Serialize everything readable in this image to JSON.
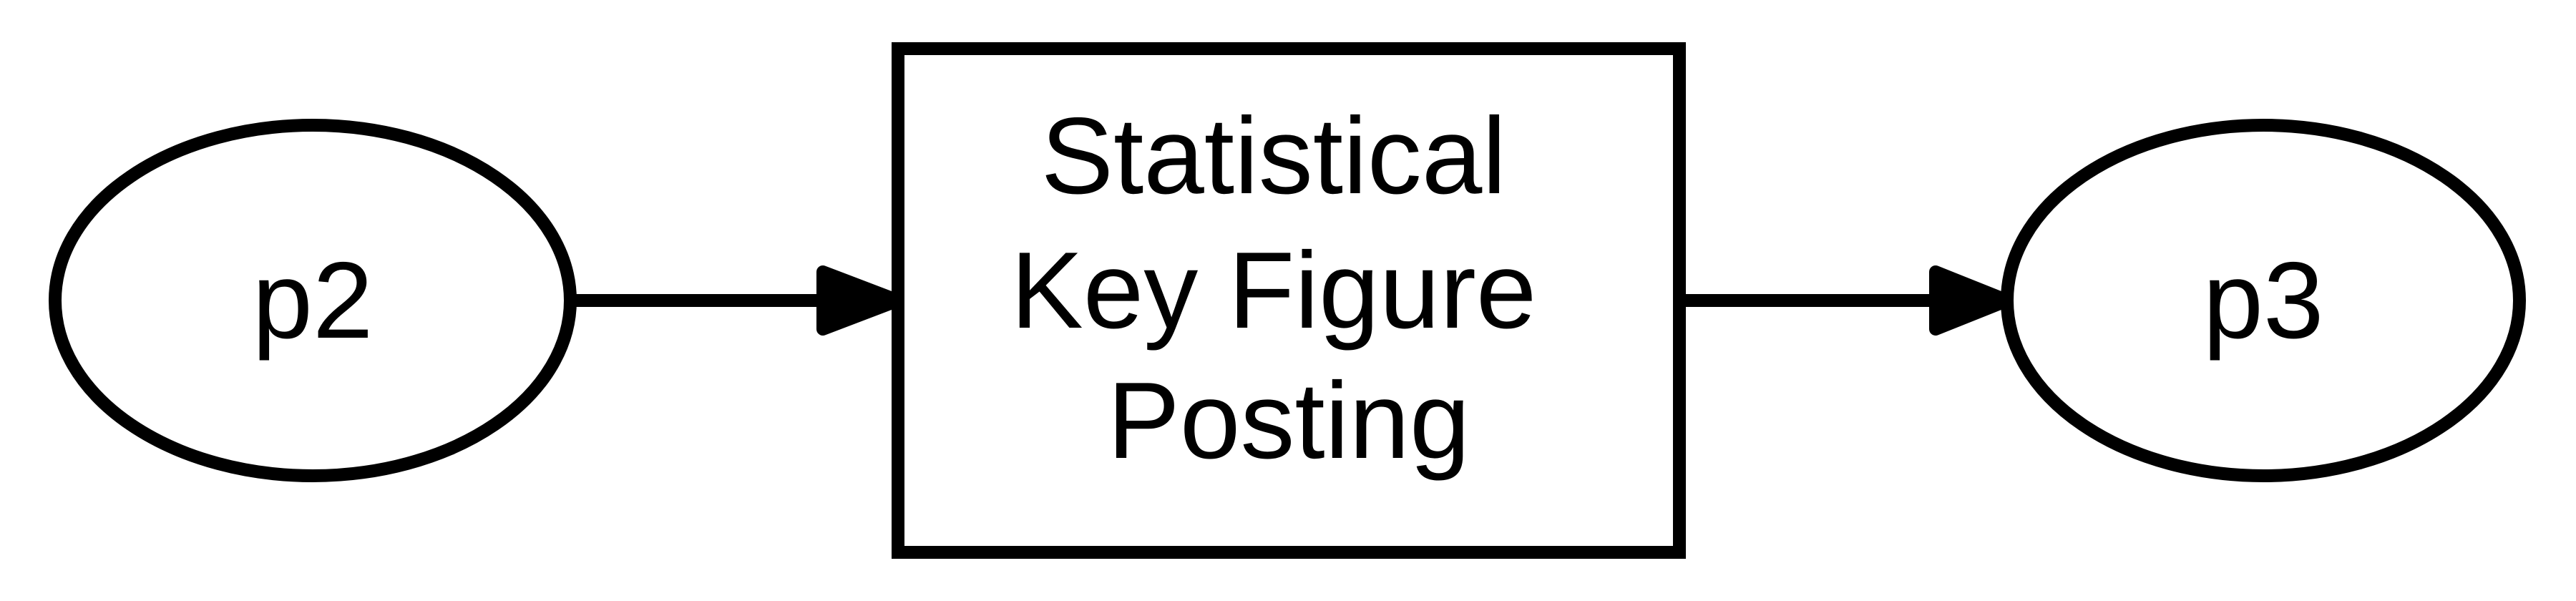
{
  "diagram": {
    "nodes": [
      {
        "id": "p2",
        "shape": "ellipse",
        "label": "p2"
      },
      {
        "id": "activity",
        "shape": "rectangle",
        "label_lines": [
          "Statistical",
          "Key Figure",
          "Posting"
        ]
      },
      {
        "id": "p3",
        "shape": "ellipse",
        "label": "p3"
      }
    ],
    "edges": [
      {
        "from": "p2",
        "to": "activity"
      },
      {
        "from": "activity",
        "to": "p3"
      }
    ],
    "colors": {
      "stroke": "#000000",
      "fill": "#ffffff",
      "text": "#000000"
    }
  }
}
